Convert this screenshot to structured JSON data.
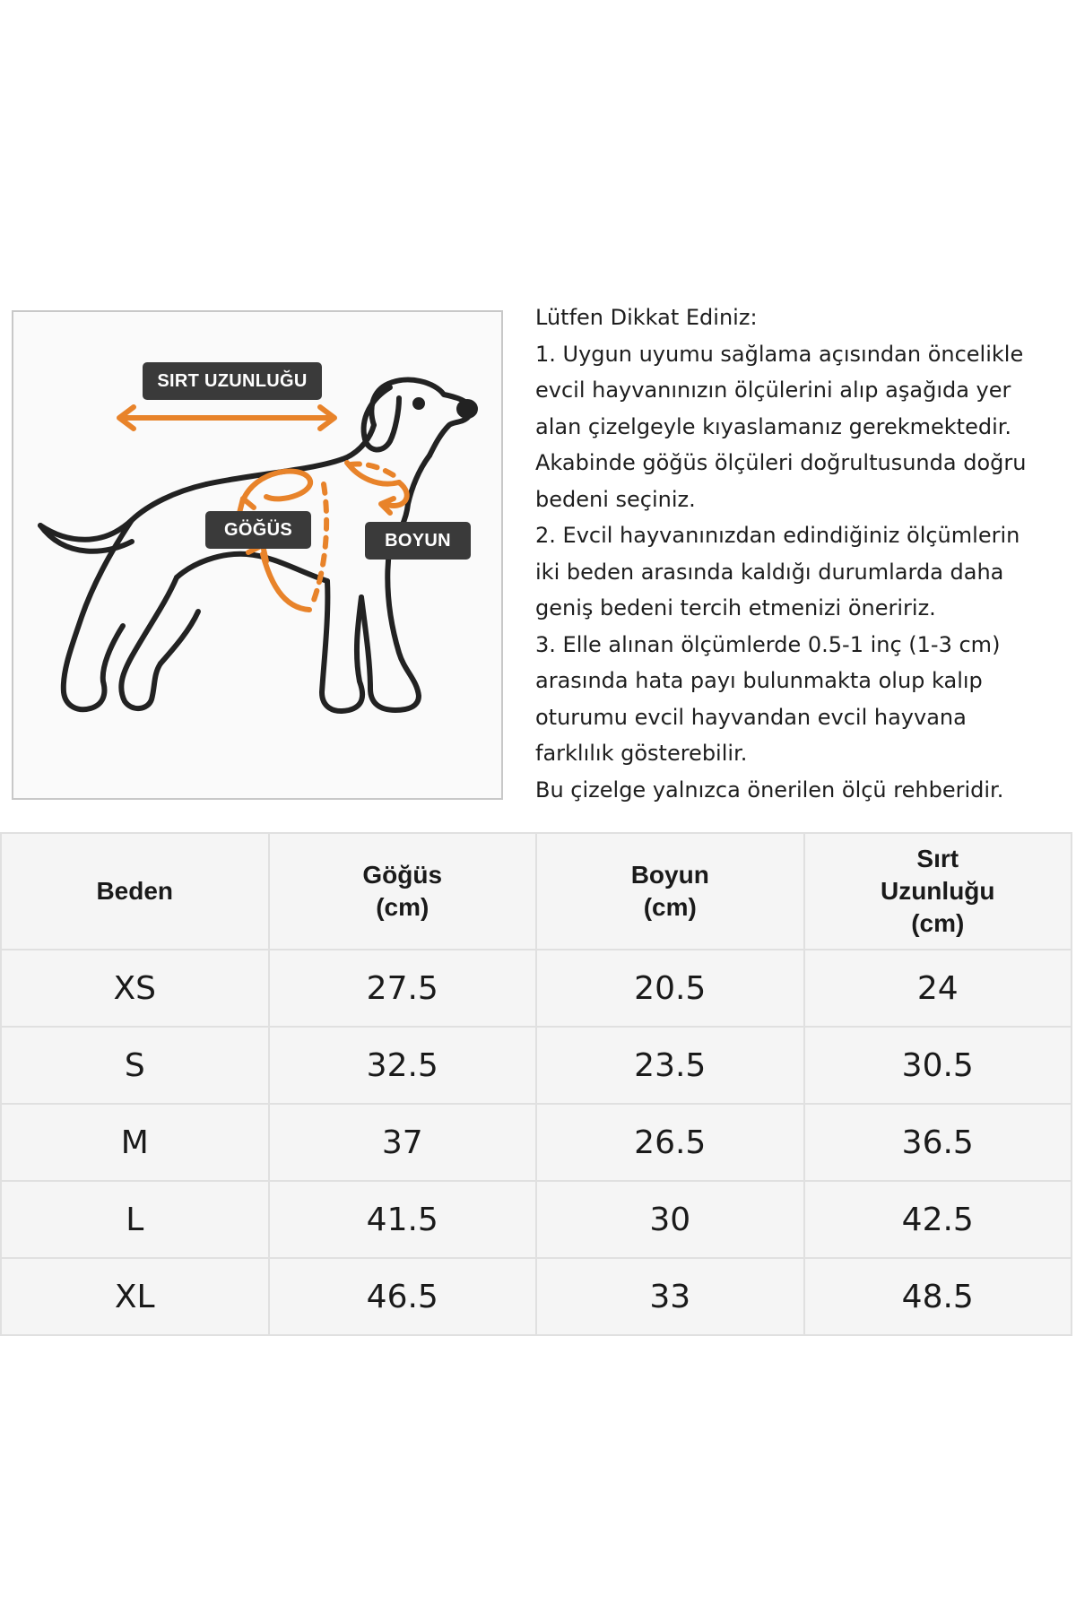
{
  "diagram": {
    "labels": {
      "back_length": "SIRT UZUNLUĞU",
      "chest": "GÖĞÜS",
      "neck": "BOYUN"
    },
    "accent_color": "#e8832a",
    "outline_color": "#222222",
    "label_bg_color": "#3a3a3a"
  },
  "notes": {
    "lines": [
      "Lütfen Dikkat Ediniz:",
      "1. Uygun uyumu sağlama açısından öncelikle",
      "evcil hayvanınızın ölçülerini alıp aşağıda yer",
      "alan çizelgeyle kıyaslamanız gerekmektedir.",
      "Akabinde göğüs ölçüleri doğrultusunda doğru",
      "bedeni seçiniz.",
      "2. Evcil hayvanınızdan edindiğiniz ölçümlerin",
      "iki beden arasında kaldığı durumlarda daha",
      "geniş bedeni tercih etmenizi öneririz.",
      "3. Elle alınan ölçümlerde 0.5-1 inç (1-3 cm)",
      "arasında hata payı bulunmakta olup kalıp",
      "oturumu evcil hayvandan evcil hayvana",
      "farklılık gösterebilir.",
      "Bu çizelge yalnızca önerilen ölçü rehberidir."
    ]
  },
  "size_table": {
    "headers": [
      [
        "Beden"
      ],
      [
        "Göğüs",
        "(cm)"
      ],
      [
        "Boyun",
        "(cm)"
      ],
      [
        "Sırt",
        "Uzunluğu",
        "(cm)"
      ]
    ],
    "rows": [
      [
        "XS",
        "27.5",
        "20.5",
        "24"
      ],
      [
        "S",
        "32.5",
        "23.5",
        "30.5"
      ],
      [
        "M",
        "37",
        "26.5",
        "36.5"
      ],
      [
        "L",
        "41.5",
        "30",
        "42.5"
      ],
      [
        "XL",
        "46.5",
        "33",
        "48.5"
      ]
    ]
  }
}
